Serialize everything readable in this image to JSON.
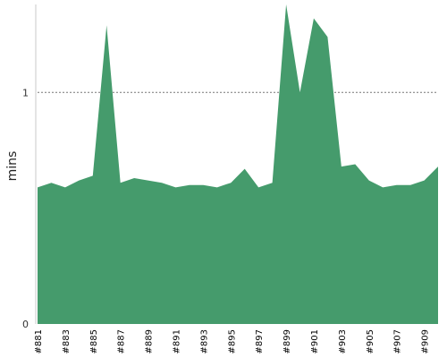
{
  "chart_data": {
    "type": "area",
    "title": "",
    "xlabel": "",
    "ylabel": "mins",
    "ylim": [
      0,
      1.38
    ],
    "y_ticks": [
      0,
      1
    ],
    "y_tick_labels": [
      "0",
      "1"
    ],
    "grid": "dashed line at 1",
    "color": "#459b6c",
    "x_tick_labels": [
      "#881",
      "#883",
      "#885",
      "#887",
      "#889",
      "#891",
      "#893",
      "#895",
      "#897",
      "#899",
      "#901",
      "#903",
      "#905",
      "#907",
      "#909"
    ],
    "categories": [
      "#881",
      "#882",
      "#883",
      "#884",
      "#885",
      "#886",
      "#887",
      "#888",
      "#889",
      "#890",
      "#891",
      "#892",
      "#893",
      "#894",
      "#895",
      "#896",
      "#897",
      "#898",
      "#899",
      "#900",
      "#901",
      "#902",
      "#903",
      "#904",
      "#905",
      "#906",
      "#907",
      "#908",
      "#909",
      "#910"
    ],
    "values": [
      0.59,
      0.61,
      0.59,
      0.62,
      0.64,
      1.29,
      0.61,
      0.63,
      0.62,
      0.61,
      0.59,
      0.6,
      0.6,
      0.59,
      0.61,
      0.67,
      0.59,
      0.61,
      1.38,
      1.0,
      1.32,
      1.24,
      0.68,
      0.69,
      0.62,
      0.59,
      0.6,
      0.6,
      0.62,
      0.68
    ]
  }
}
